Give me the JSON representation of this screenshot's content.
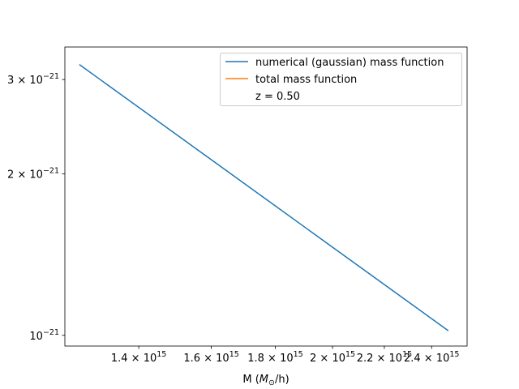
{
  "chart_data": {
    "type": "line",
    "xscale": "log",
    "yscale": "log",
    "xlim": [
      1222000000000000.0,
      2562000000000000.0
    ],
    "ylim": [
      9.55e-22,
      3.45e-21
    ],
    "xlabel": "M (M⊙/h)",
    "ylabel": "",
    "title": "",
    "grid": false,
    "legend_position": "upper right",
    "xticks": [
      {
        "value": 1400000000000000.0,
        "mantissa": "1.4",
        "exponent": "15"
      },
      {
        "value": 1600000000000000.0,
        "mantissa": "1.6",
        "exponent": "15"
      },
      {
        "value": 1800000000000000.0,
        "mantissa": "1.8",
        "exponent": "15"
      },
      {
        "value": 2000000000000000.0,
        "mantissa": "2",
        "exponent": "15"
      },
      {
        "value": 2200000000000000.0,
        "mantissa": "2.2",
        "exponent": "15"
      },
      {
        "value": 2400000000000000.0,
        "mantissa": "2.4",
        "exponent": "15"
      }
    ],
    "yticks": [
      {
        "value": 1e-21,
        "mantissa": "10",
        "exponent": "−21"
      },
      {
        "value": 2e-21,
        "mantissa": "2",
        "exponent": "−21"
      },
      {
        "value": 3e-21,
        "mantissa": "3",
        "exponent": "−21"
      }
    ],
    "series": [
      {
        "name": "numerical (gaussian) mass function",
        "color": "#1f77b4",
        "x": [
          1255000000000000.0,
          2475000000000000.0
        ],
        "y": [
          3.2e-21,
          1.02e-21
        ]
      },
      {
        "name": "total mass function",
        "color": "#ff7f0e",
        "x": [],
        "y": []
      }
    ],
    "annotation": "z = 0.50"
  }
}
